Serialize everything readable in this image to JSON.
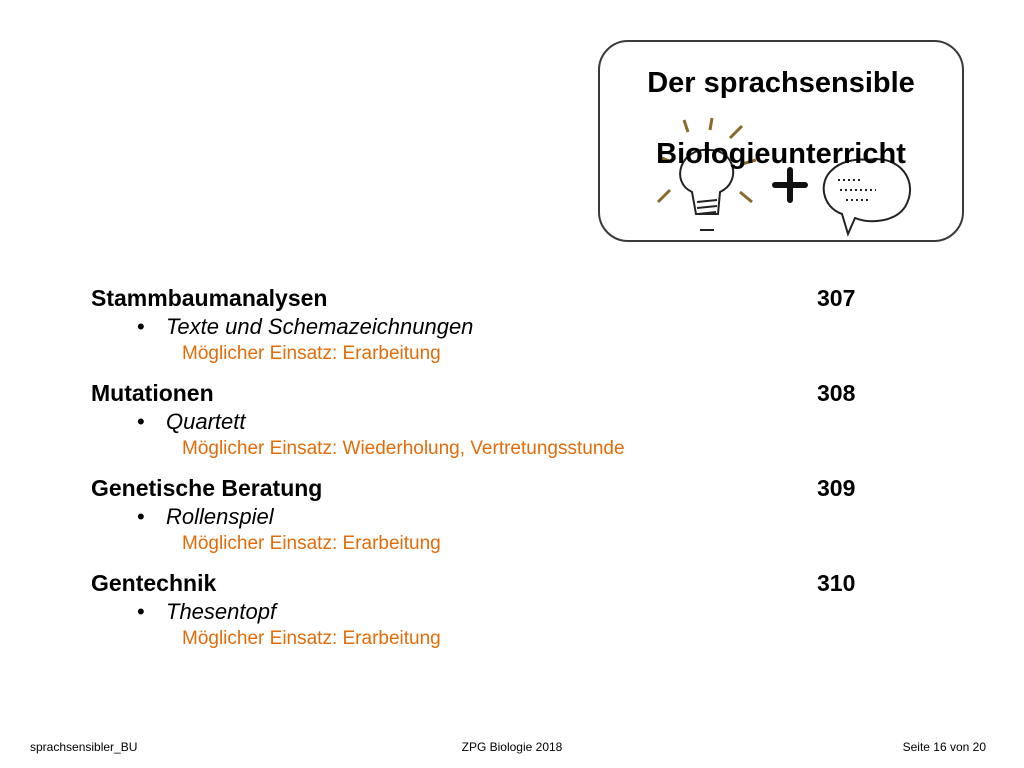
{
  "logo": {
    "line1": "Der sprachsensible",
    "line2": "Biologieunterricht",
    "icons": [
      "lightbulb-icon",
      "plus-icon",
      "speech-bubble-icon"
    ]
  },
  "sections": [
    {
      "title": "Stammbaumanalysen",
      "page": "307",
      "bullet": "•",
      "item": "Texte und Schemazeichnungen",
      "use": "Möglicher Einsatz: Erarbeitung"
    },
    {
      "title": "Mutationen",
      "page": "308",
      "bullet": "•",
      "item": "Quartett",
      "use": "Möglicher Einsatz: Wiederholung, Vertretungsstunde"
    },
    {
      "title": "Genetische Beratung",
      "page": "309",
      "bullet": "•",
      "item": "Rollenspiel",
      "use": "Möglicher Einsatz: Erarbeitung"
    },
    {
      "title": "Gentechnik",
      "page": "310",
      "bullet": "•",
      "item": "Thesentopf",
      "use": "Möglicher Einsatz: Erarbeitung"
    }
  ],
  "footer": {
    "left": "sprachsensibler_BU",
    "center": "ZPG Biologie 2018",
    "right": "Seite 16 von 20"
  },
  "colors": {
    "use_text": "#e36c0a",
    "box_border": "#3a3a3a"
  }
}
